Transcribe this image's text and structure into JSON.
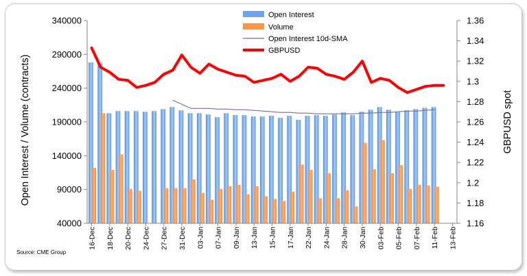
{
  "chart_data": {
    "type": "bar",
    "source": "Source: CME Group",
    "ylabel_left": "Open Interest / Volume (contracts)",
    "ylabel_right": "GBPUSD spot",
    "y_left": {
      "min": 40000,
      "max": 340000,
      "ticks": [
        "340000",
        "290000",
        "240000",
        "190000",
        "140000",
        "90000",
        "40000"
      ]
    },
    "y_right": {
      "min": 1.16,
      "max": 1.36,
      "ticks": [
        "1.36",
        "1.34",
        "1.32",
        "1.3",
        "1.28",
        "1.26",
        "1.24",
        "1.22",
        "1.2",
        "1.18",
        "1.16"
      ]
    },
    "x_tick_labels": [
      "16-Dec",
      "18-Dec",
      "20-Dec",
      "24-Dec",
      "27-Dec",
      "31-Dec",
      "03-Jan",
      "07-Jan",
      "09-Jan",
      "13-Jan",
      "15-Jan",
      "17-Jan",
      "22-Jan",
      "24-Jan",
      "28-Jan",
      "30-Jan",
      "03-Feb",
      "05-Feb",
      "07-Feb",
      "11-Feb",
      "13-Feb"
    ],
    "categories": [
      "16-Dec",
      "17-Dec",
      "18-Dec",
      "19-Dec",
      "20-Dec",
      "21-Dec",
      "24-Dec",
      "26-Dec",
      "27-Dec",
      "28-Dec",
      "31-Dec",
      "02-Jan",
      "03-Jan",
      "04-Jan",
      "07-Jan",
      "08-Jan",
      "09-Jan",
      "10-Jan",
      "11-Jan",
      "14-Jan",
      "15-Jan",
      "16-Jan",
      "17-Jan",
      "18-Jan",
      "22-Jan",
      "23-Jan",
      "24-Jan",
      "25-Jan",
      "28-Jan",
      "29-Jan",
      "30-Jan",
      "31-Jan",
      "01-Feb",
      "04-Feb",
      "05-Feb",
      "06-Feb",
      "07-Feb",
      "08-Feb",
      "11-Feb",
      "12-Feb",
      "13-Feb"
    ],
    "series": [
      {
        "name": "Open Interest",
        "kind": "bar",
        "axis": "left",
        "color": "#6fa5e8",
        "values": [
          278000,
          277000,
          203000,
          206000,
          206000,
          206000,
          205000,
          206000,
          209000,
          212000,
          207000,
          203000,
          203000,
          201000,
          197000,
          203000,
          200000,
          200000,
          198000,
          198000,
          199000,
          196000,
          199000,
          193000,
          199000,
          200000,
          199000,
          201000,
          204000,
          200000,
          205000,
          208000,
          212000,
          208000,
          205000,
          207000,
          209000,
          211000,
          212000,
          null,
          null
        ]
      },
      {
        "name": "Volume",
        "kind": "bar",
        "axis": "left",
        "color": "#f79646",
        "values": [
          122000,
          203000,
          119000,
          142000,
          91000,
          88000,
          null,
          null,
          92000,
          92000,
          92000,
          105000,
          85000,
          75000,
          91000,
          95000,
          97000,
          83000,
          95000,
          80000,
          76000,
          73000,
          87000,
          127000,
          119000,
          77000,
          114000,
          77000,
          89000,
          65000,
          159000,
          120000,
          163000,
          114000,
          126000,
          91000,
          97000,
          96000,
          94000,
          null,
          null
        ]
      },
      {
        "name": "Open Interest 10d-SMA",
        "kind": "line",
        "axis": "left",
        "color": "#7a6ba3",
        "values": [
          null,
          null,
          null,
          null,
          null,
          null,
          null,
          null,
          null,
          222000,
          216000,
          210000,
          210000,
          210000,
          209000,
          209000,
          208000,
          208000,
          207000,
          206000,
          205000,
          204000,
          204000,
          203000,
          203000,
          202000,
          202000,
          202000,
          202000,
          202000,
          203000,
          203000,
          204000,
          204000,
          205000,
          206000,
          206000,
          207000,
          208000,
          null,
          null
        ]
      },
      {
        "name": "GBPUSD",
        "kind": "line",
        "axis": "right",
        "color": "#ff0000",
        "values": [
          1.333,
          1.314,
          1.309,
          1.302,
          1.301,
          1.294,
          1.296,
          1.299,
          1.307,
          1.311,
          1.326,
          1.314,
          1.308,
          1.317,
          1.312,
          1.309,
          1.306,
          1.305,
          1.299,
          1.301,
          1.303,
          1.307,
          1.3,
          1.305,
          1.314,
          1.313,
          1.307,
          1.305,
          1.302,
          1.309,
          1.32,
          1.299,
          1.303,
          1.301,
          1.294,
          1.289,
          1.292,
          1.295,
          1.296,
          1.296,
          null
        ]
      }
    ],
    "legend": [
      "Open Interest",
      "Volume",
      "Open Interest 10d-SMA",
      "GBPUSD"
    ],
    "legend_position": "top-center",
    "grid": false
  }
}
